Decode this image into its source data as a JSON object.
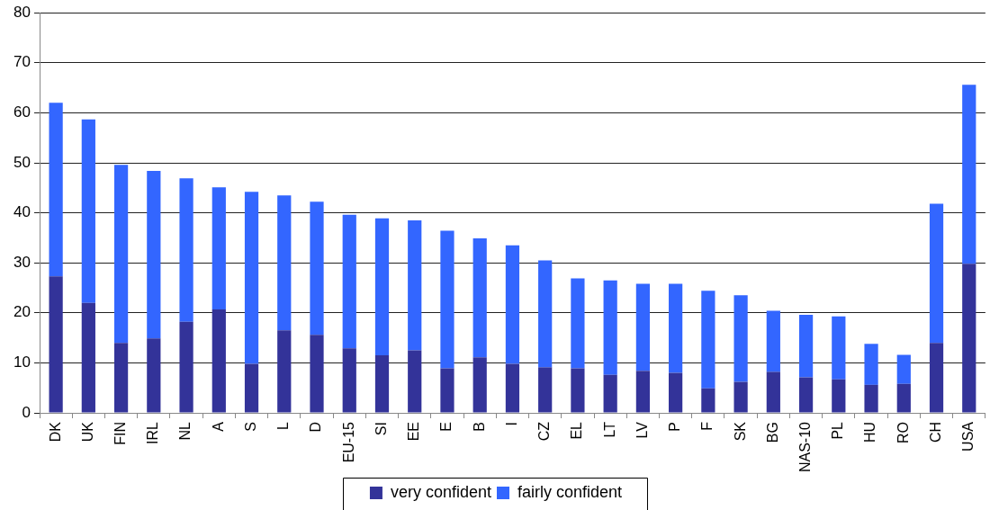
{
  "chart_data": {
    "type": "bar",
    "stacked": true,
    "categories": [
      "DK",
      "UK",
      "FIN",
      "IRL",
      "NL",
      "A",
      "S",
      "L",
      "D",
      "EU-15",
      "SI",
      "EE",
      "E",
      "B",
      "I",
      "CZ",
      "EL",
      "LT",
      "LV",
      "P",
      "F",
      "SK",
      "BG",
      "NAS-10",
      "PL",
      "HU",
      "RO",
      "CH",
      "USA"
    ],
    "series": [
      {
        "name": "very confident",
        "color": "#333399",
        "values": [
          27.3,
          22.0,
          14.0,
          14.9,
          18.2,
          20.7,
          9.8,
          16.5,
          15.6,
          12.9,
          11.5,
          12.5,
          8.9,
          11.1,
          9.8,
          9.1,
          8.9,
          7.6,
          8.4,
          8.0,
          4.9,
          6.2,
          8.2,
          7.1,
          6.7,
          5.6,
          5.8,
          14.0,
          29.8
        ]
      },
      {
        "name": "fairly confident",
        "color": "#3366ff",
        "values": [
          34.7,
          36.7,
          35.6,
          33.5,
          28.7,
          24.4,
          34.4,
          27.0,
          26.6,
          26.7,
          27.4,
          26.0,
          27.5,
          23.8,
          23.7,
          21.4,
          18.0,
          18.9,
          17.4,
          17.8,
          19.5,
          17.3,
          12.2,
          12.5,
          12.6,
          8.2,
          5.8,
          27.8,
          35.8
        ]
      }
    ],
    "ylim": [
      0,
      80
    ],
    "yticks": [
      0,
      10,
      20,
      30,
      40,
      50,
      60,
      70,
      80
    ],
    "grid": "y",
    "legend": "bottom"
  }
}
